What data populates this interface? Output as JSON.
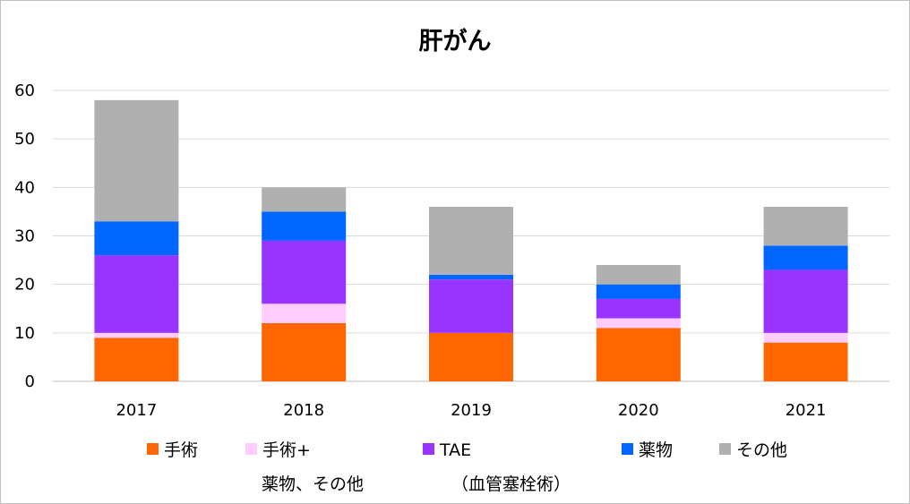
{
  "chart_data": {
    "type": "bar",
    "stacked": true,
    "title": "肝がん",
    "xlabel": "",
    "ylabel": "",
    "categories": [
      "2017",
      "2018",
      "2019",
      "2020",
      "2021"
    ],
    "ylim": [
      0,
      60
    ],
    "yticks": [
      "0",
      "10",
      "20",
      "30",
      "40",
      "50",
      "60"
    ],
    "grid": true,
    "legend_position": "bottom",
    "series": [
      {
        "name": "手術",
        "name_lines": [
          "手術"
        ],
        "color": "#ff6600",
        "values": [
          9,
          12,
          10,
          11,
          8
        ]
      },
      {
        "name": "手術+薬物、その他",
        "name_lines": [
          "手術+",
          "薬物、その他"
        ],
        "color": "#ffccff",
        "values": [
          1,
          4,
          0,
          2,
          2
        ]
      },
      {
        "name": "TAE（血管塞栓術）",
        "name_lines": [
          "TAE",
          "（血管塞栓術）"
        ],
        "color": "#9933ff",
        "values": [
          16,
          13,
          11,
          4,
          13
        ]
      },
      {
        "name": "薬物",
        "name_lines": [
          "薬物"
        ],
        "color": "#0066ff",
        "values": [
          7,
          6,
          1,
          3,
          5
        ]
      },
      {
        "name": "その他",
        "name_lines": [
          "その他"
        ],
        "color": "#b0b0b0",
        "values": [
          25,
          5,
          14,
          4,
          8
        ]
      }
    ]
  }
}
